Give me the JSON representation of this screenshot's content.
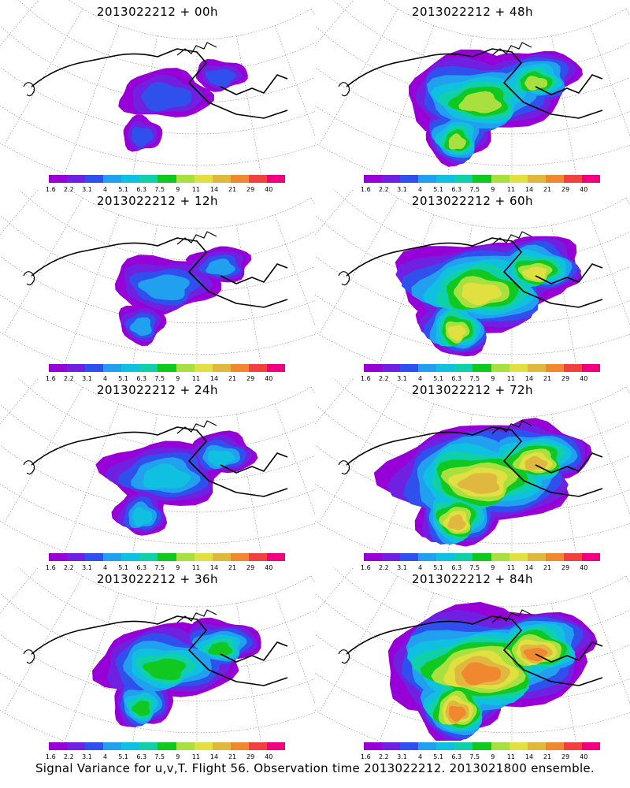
{
  "panels": [
    {
      "title": "2013022212 + 00h",
      "lead_hours": 0
    },
    {
      "title": "2013022212 + 48h",
      "lead_hours": 48
    },
    {
      "title": "2013022212 + 12h",
      "lead_hours": 12
    },
    {
      "title": "2013022212 + 60h",
      "lead_hours": 60
    },
    {
      "title": "2013022212 + 24h",
      "lead_hours": 24
    },
    {
      "title": "2013022212 + 72h",
      "lead_hours": 72
    },
    {
      "title": "2013022212 + 36h",
      "lead_hours": 36
    },
    {
      "title": "2013022212 + 84h",
      "lead_hours": 84
    }
  ],
  "colorbar": {
    "labels": [
      "1.6",
      "2.2",
      "3.1",
      "4",
      "5.1",
      "6.3",
      "7.5",
      "9",
      "11",
      "14",
      "21",
      "29",
      "40"
    ],
    "colors": [
      "#9600d6",
      "#7020e0",
      "#3050ee",
      "#22a0f0",
      "#10c0e0",
      "#10d0a8",
      "#10c820",
      "#a8e040",
      "#e0e040",
      "#e0b840",
      "#f08830",
      "#f04040",
      "#f00080"
    ]
  },
  "footer": "Signal Variance for u,v,T. Flight 56. Observation time 2013022212. 2013021800 ensemble."
}
